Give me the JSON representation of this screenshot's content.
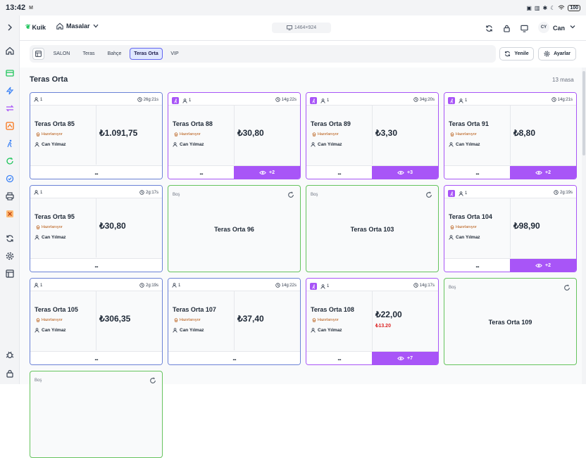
{
  "status_bar": {
    "time": "13:42",
    "m_icon": "M",
    "battery": "100"
  },
  "topbar": {
    "logo": "Kuik",
    "section": "Masalar",
    "resolution": "1464×924",
    "avatar": "CY",
    "user": "Can"
  },
  "tabs": [
    {
      "label": "SALON",
      "active": false
    },
    {
      "label": "Teras",
      "active": false
    },
    {
      "label": "Bahçe",
      "active": false
    },
    {
      "label": "Teras Orta",
      "active": true
    },
    {
      "label": "VIP",
      "active": false
    }
  ],
  "actions": {
    "refresh": "Yenile",
    "settings": "Ayarlar"
  },
  "page": {
    "title": "Teras Orta",
    "count": "13 masa"
  },
  "empty_label": "Boş",
  "tables": [
    {
      "name": "Teras Orta 85",
      "guests": "1",
      "time": "26g:21s",
      "status": "Hazırlanıyor",
      "waiter": "Can Yılmaz",
      "amount": "₺1.091,75",
      "more": "...",
      "purple": false
    },
    {
      "name": "Teras Orta 88",
      "guests": "1",
      "time": "14g:22s",
      "status": "Hazırlanıyor",
      "waiter": "Can Yılmaz",
      "amount": "₺30,80",
      "more": "...",
      "purple": true,
      "extra": "+2"
    },
    {
      "name": "Teras Orta 89",
      "guests": "1",
      "time": "34g:20s",
      "status": "Hazırlanıyor",
      "waiter": "Can Yılmaz",
      "amount": "₺3,30",
      "more": "...",
      "purple": true,
      "extra": "+3"
    },
    {
      "name": "Teras Orta 91",
      "guests": "1",
      "time": "14g:21s",
      "status": "Hazırlanıyor",
      "waiter": "Can Yılmaz",
      "amount": "₺8,80",
      "more": "...",
      "purple": true,
      "extra": "+2"
    },
    {
      "name": "Teras Orta 95",
      "guests": "1",
      "time": "2g:17s",
      "status": "Hazırlanıyor",
      "waiter": "Can Yılmaz",
      "amount": "₺30,80",
      "more": "...",
      "purple": false
    },
    {
      "name": "Teras Orta 96",
      "empty": true
    },
    {
      "name": "Teras Orta 103",
      "empty": true
    },
    {
      "name": "Teras Orta 104",
      "guests": "1",
      "time": "2g:19s",
      "status": "Hazırlanıyor",
      "waiter": "Can Yılmaz",
      "amount": "₺98,90",
      "more": "...",
      "purple": true,
      "extra": "+2"
    },
    {
      "name": "Teras Orta 105",
      "guests": "1",
      "time": "2g:19s",
      "status": "Hazırlanıyor",
      "waiter": "Can Yılmaz",
      "amount": "₺306,35",
      "more": "...",
      "purple": false
    },
    {
      "name": "Teras Orta 107",
      "guests": "1",
      "time": "14g:22s",
      "status": "Hazırlanıyor",
      "waiter": "Can Yılmaz",
      "amount": "₺37,40",
      "more": "...",
      "purple": false
    },
    {
      "name": "Teras Orta 108",
      "guests": "1",
      "time": "14g:17s",
      "status": "Hazırlanıyor",
      "waiter": "Can Yılmaz",
      "amount": "₺22,00",
      "sub_amount": "₺13.20",
      "more": "...",
      "purple": true,
      "extra": "+7"
    },
    {
      "name": "Teras Orta 109",
      "empty": true
    },
    {
      "empty": true
    }
  ]
}
